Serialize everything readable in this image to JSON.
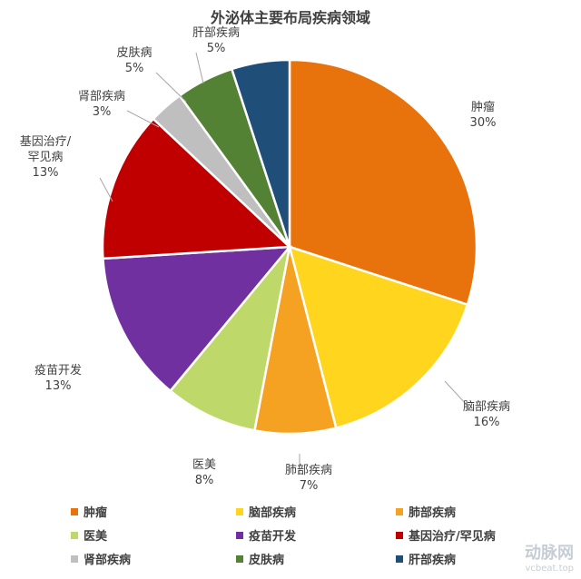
{
  "chart_data": {
    "type": "pie",
    "title": "外泌体主要布局疾病领域",
    "slices": [
      {
        "name": "肿瘤",
        "pct_label": "30%",
        "value": 30,
        "color": "#E8720C"
      },
      {
        "name": "脑部疾病",
        "pct_label": "16%",
        "value": 16,
        "color": "#FFD51E"
      },
      {
        "name": "肺部疾病",
        "pct_label": "7%",
        "value": 7,
        "color": "#F5A122"
      },
      {
        "name": "医美",
        "pct_label": "8%",
        "value": 8,
        "color": "#BFD86A"
      },
      {
        "name": "疫苗开发",
        "pct_label": "13%",
        "value": 13,
        "color": "#7030A0"
      },
      {
        "name": "基因治疗/罕见病",
        "pct_label": "13%",
        "value": 13,
        "color": "#C00000"
      },
      {
        "name": "肾部疾病",
        "pct_label": "3%",
        "value": 3,
        "color": "#BFBFBF"
      },
      {
        "name": "皮肤病",
        "pct_label": "5%",
        "value": 5,
        "color": "#548235"
      },
      {
        "name": "肝部疾病",
        "pct_label": "5%",
        "value": 5,
        "color": "#1F4E79"
      }
    ],
    "legend_position": "bottom"
  },
  "watermark": {
    "main": "动脉网",
    "sub": "vcbeat.top"
  }
}
